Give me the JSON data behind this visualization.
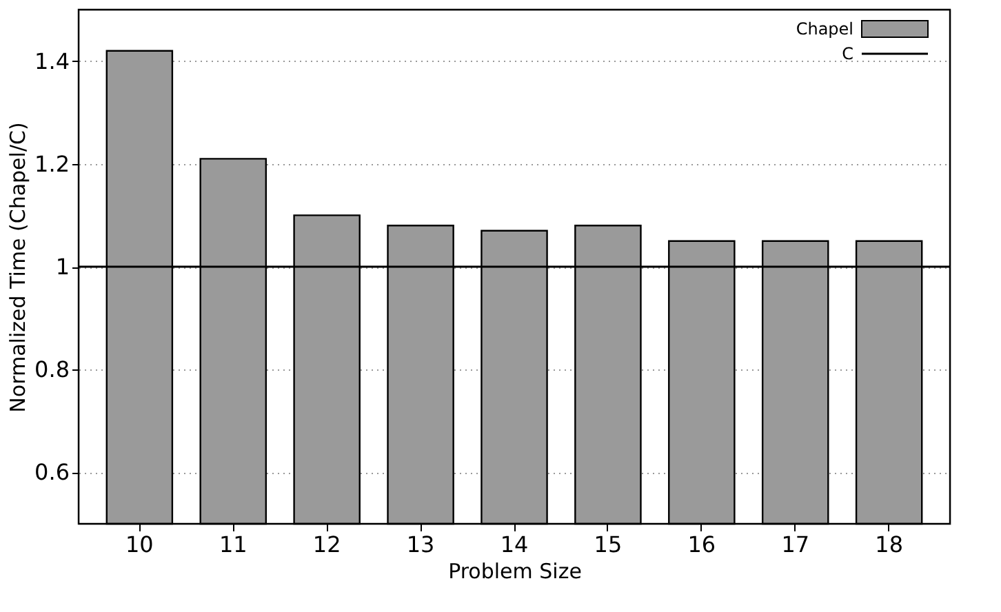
{
  "chart_data": {
    "type": "bar",
    "xlabel": "Problem Size",
    "ylabel": "Normalized Time (Chapel/C)",
    "categories": [
      "10",
      "11",
      "12",
      "13",
      "14",
      "15",
      "16",
      "17",
      "18"
    ],
    "series": [
      {
        "name": "Chapel",
        "color": "#9a9a9a",
        "values": [
          1.42,
          1.21,
          1.1,
          1.08,
          1.07,
          1.08,
          1.05,
          1.05,
          1.05
        ]
      }
    ],
    "ref_lines": [
      {
        "axis": "y",
        "value": 1,
        "label": "C",
        "color": "#000000",
        "line_style": "solid"
      }
    ],
    "ylim": [
      0.5,
      1.5
    ],
    "yticks": [
      0.6,
      0.8,
      1,
      1.2,
      1.4
    ],
    "grid": "y",
    "legend": "top right"
  }
}
